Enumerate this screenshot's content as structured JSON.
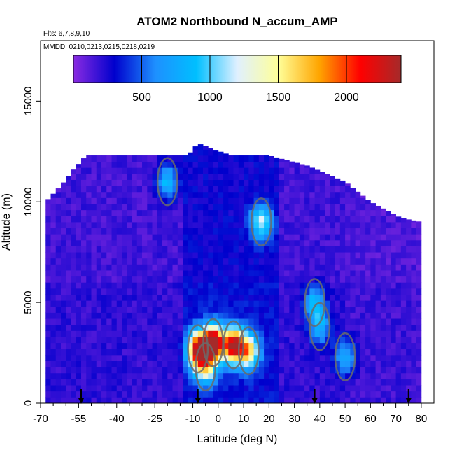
{
  "chart_data": {
    "type": "heatmap",
    "title": "ATOM2 Northbound N_accum_AMP",
    "note_flights": "Flts: 6,7,8,9,10",
    "note_dates": "MMDD: 0210,0213,0215,0218,0219",
    "xlabel": "Latitude (deg N)",
    "ylabel": "Altitude (m)",
    "xlim": [
      -70,
      85
    ],
    "ylim": [
      0,
      18000
    ],
    "x_ticks": [
      "-70",
      "-55",
      "-40",
      "-25",
      "-10",
      "0",
      "10",
      "20",
      "30",
      "40",
      "50",
      "60",
      "70",
      "80"
    ],
    "x_tick_values": [
      -70,
      -55,
      -40,
      -25,
      -10,
      0,
      10,
      20,
      30,
      40,
      50,
      60,
      70,
      80
    ],
    "y_ticks": [
      "0",
      "5000",
      "10000",
      "15000"
    ],
    "y_tick_values": [
      0,
      5000,
      10000,
      15000
    ],
    "colorbar": {
      "range": [
        0,
        2400
      ],
      "tick_labels": [
        "500",
        "1000",
        "1500",
        "2000"
      ],
      "tick_values": [
        500,
        1000,
        1500,
        2000
      ],
      "colors": [
        "#8a2be2",
        "#0000cd",
        "#1e90ff",
        "#00bfff",
        "#e0f0ff",
        "#ffff99",
        "#ffa500",
        "#ff0000",
        "#a52a2a"
      ]
    },
    "data_extent": {
      "lat_min": -68,
      "lat_max": 80,
      "alt_top_by_lat": [
        {
          "lat": -68,
          "alt": 10000
        },
        {
          "lat": -62,
          "alt": 10800
        },
        {
          "lat": -57,
          "alt": 11600
        },
        {
          "lat": -52,
          "alt": 12300
        },
        {
          "lat": -12,
          "alt": 12300
        },
        {
          "lat": -8,
          "alt": 12900
        },
        {
          "lat": 5,
          "alt": 12300
        },
        {
          "lat": 20,
          "alt": 12300
        },
        {
          "lat": 35,
          "alt": 11800
        },
        {
          "lat": 50,
          "alt": 11000
        },
        {
          "lat": 60,
          "alt": 10000
        },
        {
          "lat": 72,
          "alt": 9200
        },
        {
          "lat": 80,
          "alt": 9000
        }
      ]
    },
    "hotspots": [
      {
        "lat": -8,
        "alt": 2700,
        "value": 1900
      },
      {
        "lat": -2,
        "alt": 3000,
        "value": 2300
      },
      {
        "lat": 6,
        "alt": 2900,
        "value": 2000
      },
      {
        "lat": 12,
        "alt": 2600,
        "value": 1300
      },
      {
        "lat": -5,
        "alt": 1800,
        "value": 1100
      },
      {
        "lat": 17,
        "alt": 9000,
        "value": 900
      },
      {
        "lat": -20,
        "alt": 11000,
        "value": 700
      },
      {
        "lat": 38,
        "alt": 5000,
        "value": 650
      },
      {
        "lat": 40,
        "alt": 3800,
        "value": 600
      },
      {
        "lat": 50,
        "alt": 2300,
        "value": 600
      }
    ],
    "flight_markers": [
      -54,
      -8,
      38,
      75
    ]
  }
}
